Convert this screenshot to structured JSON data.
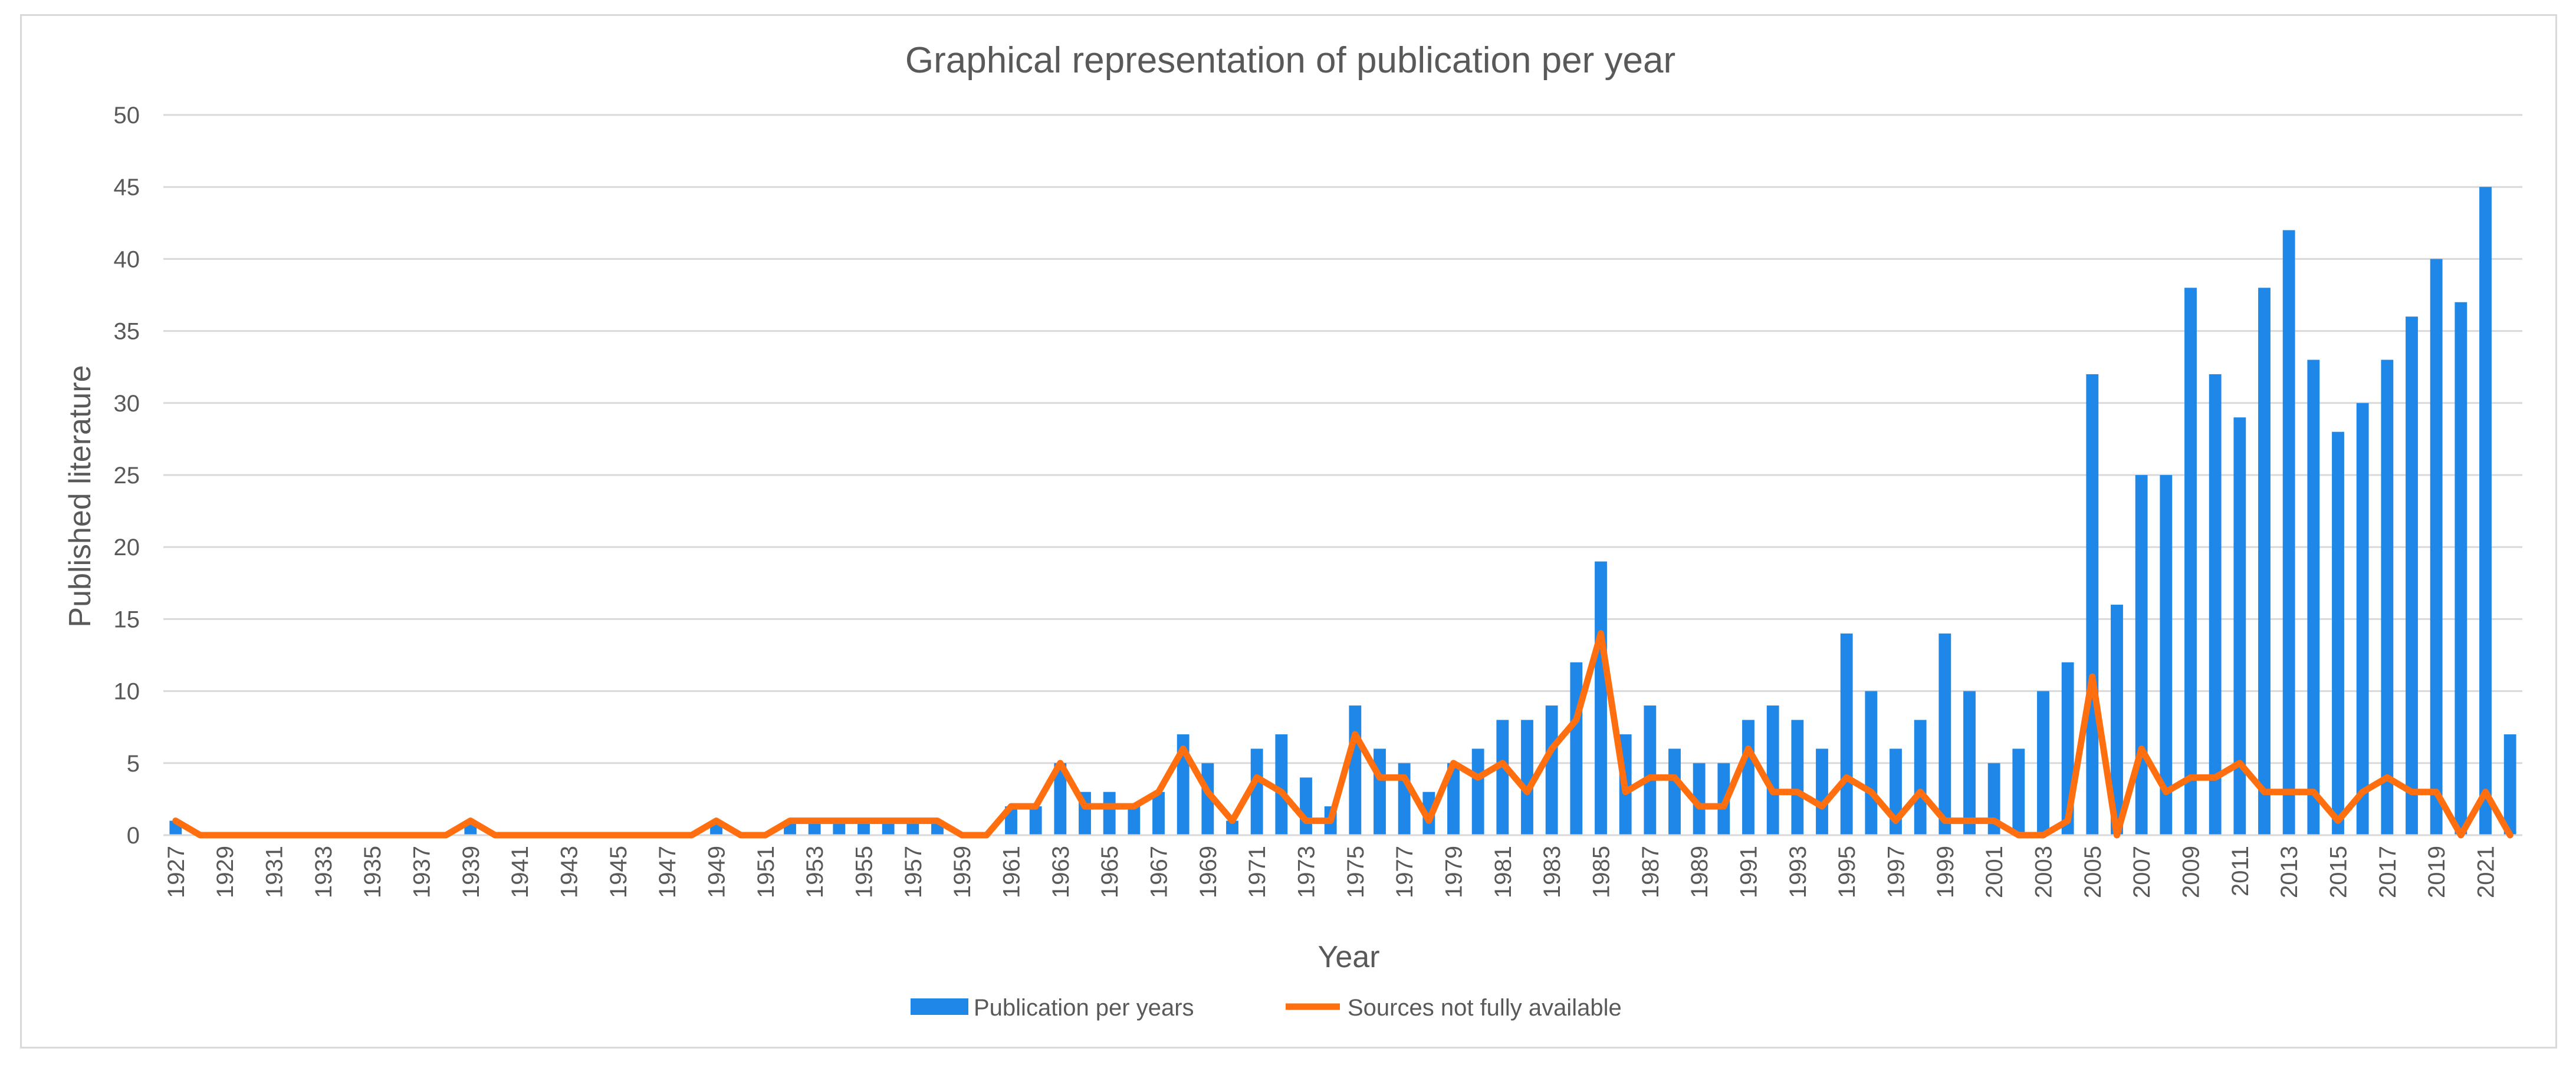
{
  "chart_data": {
    "type": "bar",
    "title": "Graphical representation of publication per year",
    "xlabel": "Year",
    "ylabel": "Published literature",
    "ylim": [
      0,
      50
    ],
    "yticks": [
      0,
      5,
      10,
      15,
      20,
      25,
      30,
      35,
      40,
      45,
      50
    ],
    "grid": true,
    "legend_position": "bottom",
    "categories": [
      1927,
      1928,
      1929,
      1930,
      1931,
      1932,
      1933,
      1934,
      1935,
      1936,
      1937,
      1938,
      1939,
      1940,
      1941,
      1942,
      1943,
      1944,
      1945,
      1946,
      1947,
      1948,
      1949,
      1950,
      1951,
      1952,
      1953,
      1954,
      1955,
      1956,
      1957,
      1958,
      1959,
      1960,
      1961,
      1962,
      1963,
      1964,
      1965,
      1966,
      1967,
      1968,
      1969,
      1970,
      1971,
      1972,
      1973,
      1974,
      1975,
      1976,
      1977,
      1978,
      1979,
      1980,
      1981,
      1982,
      1983,
      1984,
      1985,
      1986,
      1987,
      1988,
      1989,
      1990,
      1991,
      1992,
      1993,
      1994,
      1995,
      1996,
      1997,
      1998,
      1999,
      2000,
      2001,
      2002,
      2003,
      2004,
      2005,
      2006,
      2007,
      2008,
      2009,
      2010,
      2011,
      2012,
      2013,
      2014,
      2015,
      2016,
      2017,
      2018,
      2019,
      2020,
      2021,
      2022
    ],
    "x_tick_labels": [
      "1927",
      "1929",
      "1931",
      "1933",
      "1935",
      "1937",
      "1939",
      "1941",
      "1943",
      "1945",
      "1947",
      "1949",
      "1951",
      "1953",
      "1955",
      "1957",
      "1959",
      "1961",
      "1963",
      "1965",
      "1967",
      "1969",
      "1971",
      "1973",
      "1975",
      "1977",
      "1979",
      "1981",
      "1983",
      "1985",
      "1987",
      "1989",
      "1991",
      "1993",
      "1995",
      "1997",
      "1999",
      "2001",
      "2003",
      "2005",
      "2007",
      "2009",
      "2011",
      "2013",
      "2015",
      "2017",
      "2019",
      "2021"
    ],
    "series": [
      {
        "name": "Publication per years",
        "type": "bar",
        "color": "#1f87e8",
        "values": [
          1,
          0,
          0,
          0,
          0,
          0,
          0,
          0,
          0,
          0,
          0,
          0,
          1,
          0,
          0,
          0,
          0,
          0,
          0,
          0,
          0,
          0,
          1,
          0,
          0,
          1,
          1,
          1,
          1,
          1,
          1,
          1,
          0,
          0,
          2,
          2,
          5,
          3,
          3,
          2,
          3,
          7,
          5,
          1,
          6,
          7,
          4,
          2,
          9,
          6,
          5,
          3,
          5,
          6,
          8,
          8,
          9,
          12,
          19,
          7,
          9,
          6,
          5,
          5,
          8,
          9,
          8,
          6,
          14,
          10,
          6,
          8,
          14,
          10,
          5,
          6,
          10,
          12,
          32,
          16,
          25,
          25,
          38,
          32,
          29,
          38,
          42,
          33,
          28,
          30,
          33,
          36,
          40,
          37,
          45,
          7
        ]
      },
      {
        "name": "Sources not fully available",
        "type": "line",
        "color": "#ff6f0f",
        "values": [
          1,
          0,
          0,
          0,
          0,
          0,
          0,
          0,
          0,
          0,
          0,
          0,
          1,
          0,
          0,
          0,
          0,
          0,
          0,
          0,
          0,
          0,
          1,
          0,
          0,
          1,
          1,
          1,
          1,
          1,
          1,
          1,
          0,
          0,
          2,
          2,
          5,
          2,
          2,
          2,
          3,
          6,
          3,
          1,
          4,
          3,
          1,
          1,
          7,
          4,
          4,
          1,
          5,
          4,
          5,
          3,
          6,
          8,
          14,
          3,
          4,
          4,
          2,
          2,
          6,
          3,
          3,
          2,
          4,
          3,
          1,
          3,
          1,
          1,
          1,
          0,
          0,
          1,
          11,
          0,
          6,
          3,
          4,
          4,
          5,
          3,
          3,
          3,
          1,
          3,
          4,
          3,
          3,
          0,
          3,
          0
        ]
      }
    ]
  }
}
